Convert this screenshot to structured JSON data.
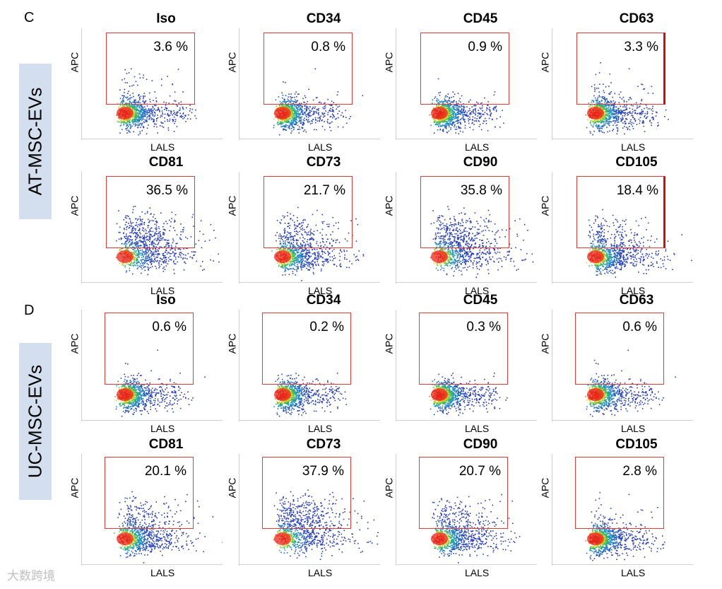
{
  "sections": [
    {
      "letter": "C",
      "row_label": "AT-MSC-EVs",
      "rows": [
        [
          {
            "marker": "Iso",
            "pct": "3.6 %"
          },
          {
            "marker": "CD34",
            "pct": "0.8 %"
          },
          {
            "marker": "CD45",
            "pct": "0.9 %"
          },
          {
            "marker": "CD63",
            "pct": "3.3 %"
          }
        ],
        [
          {
            "marker": "CD81",
            "pct": "36.5 %"
          },
          {
            "marker": "CD73",
            "pct": "21.7 %"
          },
          {
            "marker": "CD90",
            "pct": "35.8 %"
          },
          {
            "marker": "CD105",
            "pct": "18.4 %"
          }
        ]
      ]
    },
    {
      "letter": "D",
      "row_label": "UC-MSC-EVs",
      "rows": [
        [
          {
            "marker": "Iso",
            "pct": "0.6 %"
          },
          {
            "marker": "CD34",
            "pct": "0.2 %"
          },
          {
            "marker": "CD45",
            "pct": "0.3 %"
          },
          {
            "marker": "CD63",
            "pct": "0.6 %"
          }
        ],
        [
          {
            "marker": "CD81",
            "pct": "20.1 %"
          },
          {
            "marker": "CD73",
            "pct": "37.9 %"
          },
          {
            "marker": "CD90",
            "pct": "20.7 %"
          },
          {
            "marker": "CD105",
            "pct": "2.8 %"
          }
        ]
      ]
    }
  ],
  "axes": {
    "y_label": "APC",
    "x_label": "LALS"
  },
  "watermark": "大数跨境",
  "colors": {
    "gate": "#e03a3a",
    "label_box": "#d3deef"
  }
}
